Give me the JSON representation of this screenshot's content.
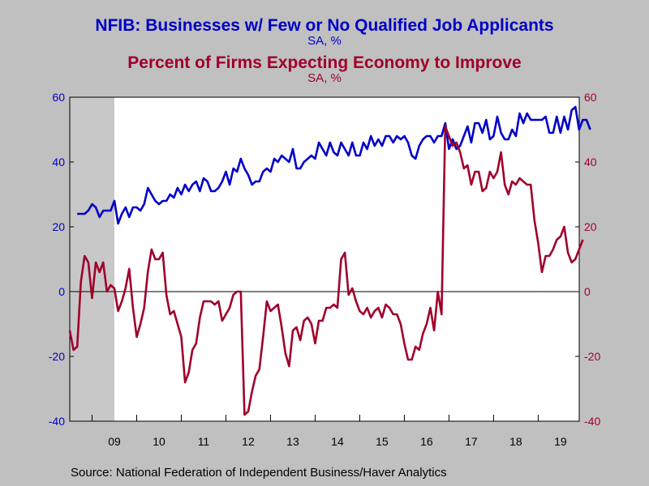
{
  "chart_data": {
    "type": "line",
    "titles": [
      {
        "text": "NFIB: Businesses w/ Few or No Qualified Job Applicants",
        "units": "SA, %",
        "color": "#0000c8"
      },
      {
        "text": "Percent of Firms Expecting Economy to Improve",
        "units": "SA, %",
        "color": "#a0002a"
      }
    ],
    "x_labels": [
      "09",
      "10",
      "11",
      "12",
      "13",
      "14",
      "15",
      "16",
      "17",
      "18",
      "19"
    ],
    "x_range": [
      2008.5,
      2019.92
    ],
    "y_left": {
      "ticks": [
        "60",
        "40",
        "20",
        "0",
        "-20",
        "-40"
      ],
      "range": [
        -40,
        60
      ]
    },
    "y_right": {
      "ticks": [
        "60",
        "40",
        "20",
        "0",
        "-20",
        "-40"
      ],
      "range": [
        -40,
        60
      ]
    },
    "recession_shading": {
      "start": 2008.5,
      "end": 2009.5,
      "color": "#c8c8c8"
    },
    "zero_line": true,
    "series": [
      {
        "name": "NFIB: Businesses w/ Few or No Qualified Job Applicants",
        "axis": "left",
        "color": "#0000c8",
        "start_year": 2008.667,
        "step_months": 1,
        "values": [
          24,
          24,
          24,
          25,
          27,
          26,
          23,
          25,
          25,
          25,
          28,
          21,
          24,
          26,
          23,
          26,
          26,
          25,
          27,
          32,
          30,
          28,
          27,
          28,
          28,
          30,
          29,
          32,
          30,
          33,
          31,
          33,
          34,
          31,
          35,
          34,
          31,
          31,
          32,
          34,
          37,
          33,
          38,
          37,
          41,
          38,
          36,
          33,
          34,
          34,
          37,
          38,
          37,
          41,
          40,
          42,
          41,
          40,
          44,
          38,
          38,
          40,
          41,
          42,
          41,
          46,
          44,
          42,
          46,
          43,
          42,
          46,
          44,
          42,
          46,
          42,
          42,
          46,
          44,
          48,
          45,
          47,
          45,
          48,
          48,
          46,
          48,
          47,
          48,
          46,
          42,
          41,
          45,
          47,
          48,
          48,
          46,
          48,
          48,
          52,
          44,
          47,
          44,
          45,
          48,
          51,
          46,
          52,
          52,
          49,
          53,
          47,
          48,
          54,
          49,
          47,
          47,
          50,
          48,
          55,
          52,
          55,
          53,
          53,
          53,
          53,
          54,
          49,
          49,
          54,
          49,
          54,
          50,
          56,
          57,
          50,
          53,
          53,
          50
        ]
      },
      {
        "name": "Percent of Firms Expecting Economy to Improve",
        "axis": "right",
        "color": "#a0002a",
        "start_year": 2008.5,
        "step_months": 1,
        "values": [
          -12,
          -18,
          -17,
          3,
          11,
          9,
          -2,
          9,
          6,
          9,
          0,
          2,
          1,
          -6,
          -3,
          1,
          7,
          -5,
          -14,
          -10,
          -5,
          6,
          13,
          10,
          10,
          12,
          -1,
          -7,
          -6,
          -10,
          -14,
          -28,
          -25,
          -18,
          -16,
          -8,
          -3,
          -3,
          -3,
          -4,
          -3,
          -9,
          -7,
          -5,
          -1,
          0,
          0,
          -38,
          -37,
          -31,
          -26,
          -24,
          -14,
          -3,
          -6,
          -5,
          -4,
          -11,
          -19,
          -23,
          -12,
          -11,
          -15,
          -9,
          -8,
          -10,
          -16,
          -9,
          -9,
          -5,
          -5,
          -4,
          -5,
          10,
          12,
          -1,
          1,
          -3,
          -6,
          -7,
          -5,
          -8,
          -6,
          -5,
          -8,
          -4,
          -5,
          -7,
          -7,
          -10,
          -16,
          -21,
          -21,
          -17,
          -18,
          -13,
          -10,
          -5,
          -12,
          0,
          -7,
          51,
          48,
          45,
          46,
          43,
          38,
          39,
          33,
          37,
          37,
          31,
          32,
          37,
          35,
          37,
          43,
          33,
          30,
          34,
          33,
          35,
          34,
          33,
          33,
          22,
          15,
          6,
          11,
          11,
          13,
          16,
          17,
          20,
          12,
          9,
          10,
          13,
          16
        ]
      }
    ]
  },
  "source": "Source:  National Federation of Independent Business/Haver Analytics"
}
